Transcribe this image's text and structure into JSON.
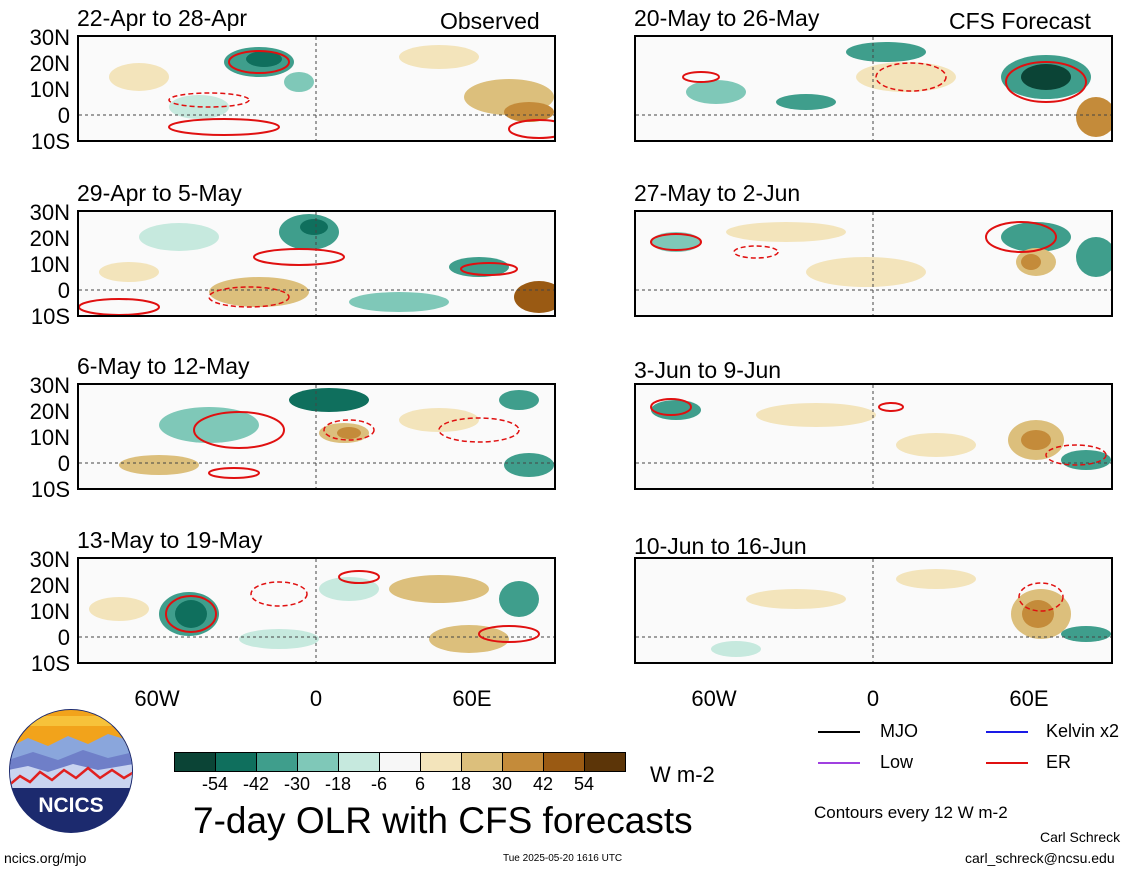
{
  "panels": {
    "p0": {
      "title": "22-Apr to 28-Apr",
      "tag": "Observed"
    },
    "p1": {
      "title": "20-May to 26-May",
      "tag": "CFS Forecast"
    },
    "p2": {
      "title": "29-Apr to 5-May",
      "tag": ""
    },
    "p3": {
      "title": "27-May to 2-Jun",
      "tag": ""
    },
    "p4": {
      "title": "6-May to 12-May",
      "tag": ""
    },
    "p5": {
      "title": "3-Jun to 9-Jun",
      "tag": ""
    },
    "p6": {
      "title": "13-May to 19-May",
      "tag": ""
    },
    "p7": {
      "title": "10-Jun to 16-Jun",
      "tag": ""
    }
  },
  "lat_labels": [
    "30N",
    "20N",
    "10N",
    "0",
    "10S"
  ],
  "lon_labels": [
    "60W",
    "0",
    "60E"
  ],
  "colorbar": {
    "ticks": [
      "-54",
      "-42",
      "-30",
      "-18",
      "-6",
      "6",
      "18",
      "30",
      "42",
      "54"
    ],
    "colors": [
      "#0b4436",
      "#0f6f5d",
      "#3f9e8c",
      "#7fc8b8",
      "#c6e9de",
      "#f7f7f7",
      "#f3e4bb",
      "#dcbf7c",
      "#c48b3a",
      "#9a5a13",
      "#5c3508"
    ],
    "units": "W m-2"
  },
  "legend": {
    "mjo": {
      "label": "MJO",
      "color": "#000000"
    },
    "kelvin": {
      "label": "Kelvin x2",
      "color": "#1a1ae6"
    },
    "low": {
      "label": "Low",
      "color": "#a040e0"
    },
    "er": {
      "label": "ER",
      "color": "#e01010"
    }
  },
  "contour_note": "Contours every 12 W m-2",
  "main_title": "7-day OLR with CFS forecasts",
  "site": "ncics.org/mjo",
  "timestamp": "Tue 2025-05-20 1616 UTC",
  "author": "Carl Schreck",
  "email": "carl_schreck@ncsu.edu",
  "logo_text": "NCICS"
}
